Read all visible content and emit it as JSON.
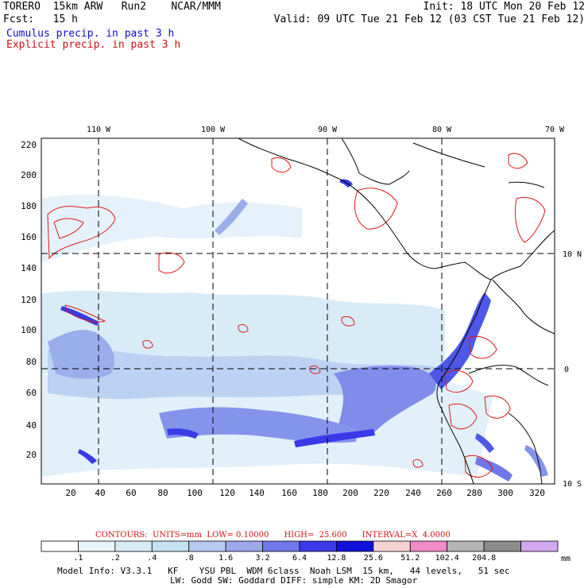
{
  "header": {
    "model": "TORERO  15km ARW   Run2    NCAR/MMM",
    "init": "Init: 18 UTC Mon 20 Feb 12",
    "fcst": "Fcst:   15 h",
    "valid": "Valid: 09 UTC Tue 21 Feb 12 (03 CST Tue 21 Feb 12)",
    "cumulus": "Cumulus precip. in past 3 h",
    "explicit": "Explicit precip. in past 3 h"
  },
  "axes": {
    "lon_labels": [
      "110 W",
      "100 W",
      "90 W",
      "80 W",
      "70 W"
    ],
    "lat_labels": [
      "10 N",
      "0",
      "10 S"
    ],
    "y_ticks": [
      "20",
      "40",
      "60",
      "80",
      "100",
      "120",
      "140",
      "160",
      "180",
      "200",
      "220"
    ],
    "x_ticks": [
      "20",
      "40",
      "60",
      "80",
      "100",
      "120",
      "140",
      "160",
      "180",
      "200",
      "220",
      "240",
      "260",
      "280",
      "300",
      "320"
    ]
  },
  "contours_line": {
    "label": "CONTOURS:  UNITS=mm  LOW= 0.10000      HIGH=  25.600      INTERVAL=X  4.0000"
  },
  "colorbar": {
    "labels": [
      ".1",
      ".2",
      ".4",
      ".8",
      "1.6",
      "3.2",
      "6.4",
      "12.8",
      "25.6",
      "51.2",
      "102.4",
      "204.8"
    ],
    "unit": "mm",
    "colors": [
      "#ffffff",
      "#eaf4fb",
      "#d8ecf8",
      "#c4e2f4",
      "#b6cbf0",
      "#9ba8ec",
      "#6f78ea",
      "#3a3ae8",
      "#1010d8",
      "#f6d2d2",
      "#f08ac8",
      "#b4b4b4",
      "#8c8c8c",
      "#d2a8f0"
    ]
  },
  "footer": {
    "line1": "Model Info: V3.3.1   KF    YSU PBL  WDM 6class  Noah LSM  15 km,   44 levels,   51 sec",
    "line2": "LW: Godd SW: Goddard DIFF: simple KM: 2D Smagor"
  }
}
